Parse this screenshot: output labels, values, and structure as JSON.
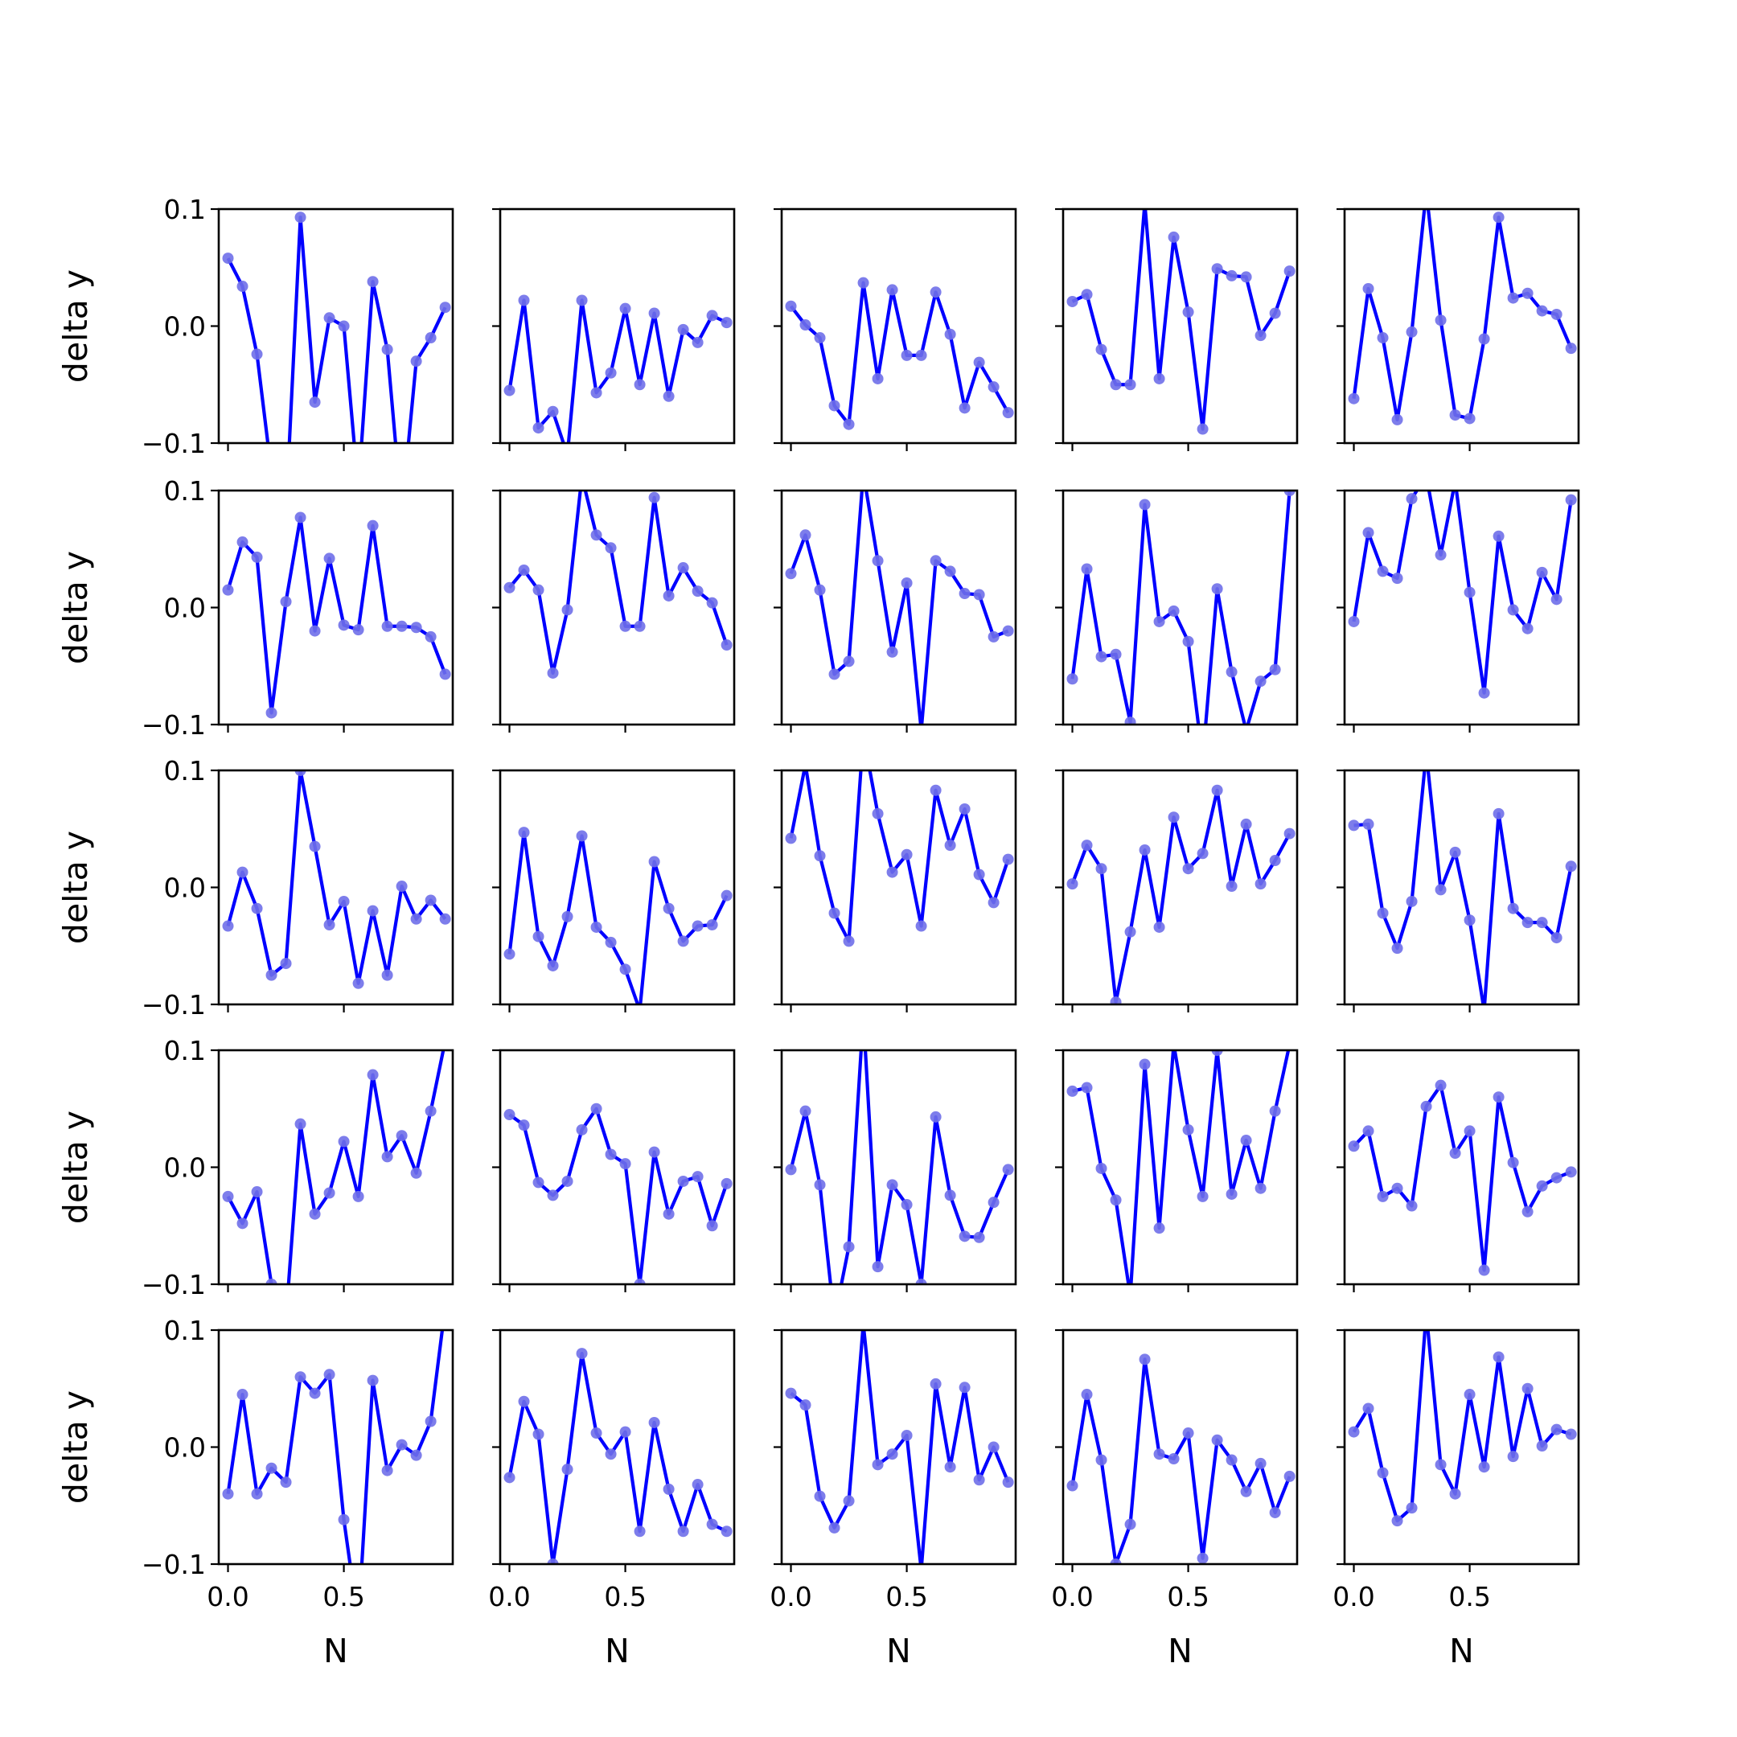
{
  "chart_data": {
    "type": "line",
    "layout": {
      "rows": 5,
      "cols": 5,
      "sharex": true,
      "sharey": true
    },
    "x": [
      0,
      0.0625,
      0.125,
      0.1875,
      0.25,
      0.3125,
      0.375,
      0.4375,
      0.5,
      0.5625,
      0.625,
      0.6875,
      0.75,
      0.8125,
      0.875,
      0.9375
    ],
    "xlim": [
      -0.04,
      0.97
    ],
    "ylim": [
      -0.1,
      0.1
    ],
    "xticks": [
      0.0,
      0.5
    ],
    "xtick_labels": [
      "0.0",
      "0.5"
    ],
    "yticks": [
      -0.1,
      0.0,
      0.1
    ],
    "ytick_labels": [
      "−0.1",
      "0.0",
      "0.1"
    ],
    "xlabel": "N",
    "ylabel": "delta y",
    "line_color": "#0000ff",
    "marker_color": "#6f6fe9",
    "grid": false,
    "subplots": [
      {
        "row": 0,
        "col": 0,
        "y": [
          0.058,
          0.034,
          -0.024,
          -0.125,
          -0.16,
          0.093,
          -0.065,
          0.007,
          0.0,
          -0.14,
          0.038,
          -0.02,
          -0.16,
          -0.03,
          -0.01,
          0.016
        ]
      },
      {
        "row": 0,
        "col": 1,
        "y": [
          -0.055,
          0.022,
          -0.087,
          -0.073,
          -0.11,
          0.022,
          -0.057,
          -0.04,
          0.015,
          -0.05,
          0.011,
          -0.06,
          -0.003,
          -0.014,
          0.009,
          0.003
        ]
      },
      {
        "row": 0,
        "col": 2,
        "y": [
          0.017,
          0.001,
          -0.01,
          -0.068,
          -0.084,
          0.037,
          -0.045,
          0.031,
          -0.025,
          -0.025,
          0.029,
          -0.007,
          -0.07,
          -0.031,
          -0.052,
          -0.074
        ]
      },
      {
        "row": 0,
        "col": 3,
        "y": [
          0.021,
          0.027,
          -0.02,
          -0.05,
          -0.05,
          0.105,
          -0.045,
          0.076,
          0.012,
          -0.088,
          0.049,
          0.043,
          0.042,
          -0.008,
          0.011,
          0.047
        ]
      },
      {
        "row": 0,
        "col": 4,
        "y": [
          -0.062,
          0.032,
          -0.01,
          -0.08,
          -0.005,
          0.115,
          0.005,
          -0.076,
          -0.079,
          -0.011,
          0.093,
          0.024,
          0.028,
          0.013,
          0.01,
          -0.019
        ]
      },
      {
        "row": 1,
        "col": 0,
        "y": [
          0.015,
          0.056,
          0.043,
          -0.09,
          0.005,
          0.077,
          -0.02,
          0.042,
          -0.015,
          -0.019,
          0.07,
          -0.016,
          -0.016,
          -0.017,
          -0.025,
          -0.057
        ]
      },
      {
        "row": 1,
        "col": 1,
        "y": [
          0.017,
          0.032,
          0.015,
          -0.056,
          -0.002,
          0.112,
          0.062,
          0.051,
          -0.016,
          -0.016,
          0.094,
          0.01,
          0.034,
          0.014,
          0.004,
          -0.032
        ]
      },
      {
        "row": 1,
        "col": 2,
        "y": [
          0.029,
          0.062,
          0.015,
          -0.057,
          -0.046,
          0.115,
          0.04,
          -0.038,
          0.021,
          -0.105,
          0.04,
          0.031,
          0.012,
          0.011,
          -0.025,
          -0.02
        ]
      },
      {
        "row": 1,
        "col": 3,
        "y": [
          -0.061,
          0.033,
          -0.042,
          -0.04,
          -0.098,
          0.088,
          -0.012,
          -0.003,
          -0.029,
          -0.13,
          0.016,
          -0.055,
          -0.105,
          -0.063,
          -0.053,
          0.1
        ]
      },
      {
        "row": 1,
        "col": 4,
        "y": [
          -0.012,
          0.064,
          0.031,
          0.025,
          0.093,
          0.113,
          0.045,
          0.108,
          0.013,
          -0.073,
          0.061,
          -0.002,
          -0.018,
          0.03,
          0.007,
          0.092
        ]
      },
      {
        "row": 2,
        "col": 0,
        "y": [
          -0.033,
          0.013,
          -0.018,
          -0.075,
          -0.065,
          0.1,
          0.035,
          -0.032,
          -0.012,
          -0.082,
          -0.02,
          -0.075,
          0.001,
          -0.027,
          -0.011,
          -0.027
        ]
      },
      {
        "row": 2,
        "col": 1,
        "y": [
          -0.057,
          0.047,
          -0.042,
          -0.067,
          -0.025,
          0.044,
          -0.034,
          -0.047,
          -0.07,
          -0.105,
          0.022,
          -0.018,
          -0.046,
          -0.033,
          -0.032,
          -0.007
        ]
      },
      {
        "row": 2,
        "col": 2,
        "y": [
          0.042,
          0.105,
          0.027,
          -0.022,
          -0.046,
          0.13,
          0.063,
          0.013,
          0.028,
          -0.033,
          0.083,
          0.036,
          0.067,
          0.011,
          -0.013,
          0.024
        ]
      },
      {
        "row": 2,
        "col": 3,
        "y": [
          0.003,
          0.036,
          0.016,
          -0.098,
          -0.038,
          0.032,
          -0.034,
          0.06,
          0.016,
          0.029,
          0.083,
          0.001,
          0.054,
          0.003,
          0.023,
          0.046
        ]
      },
      {
        "row": 2,
        "col": 4,
        "y": [
          0.053,
          0.054,
          -0.022,
          -0.052,
          -0.012,
          0.115,
          -0.002,
          0.03,
          -0.028,
          -0.105,
          0.063,
          -0.018,
          -0.03,
          -0.03,
          -0.043,
          0.018
        ]
      },
      {
        "row": 3,
        "col": 0,
        "y": [
          -0.025,
          -0.048,
          -0.021,
          -0.1,
          -0.13,
          0.037,
          -0.04,
          -0.022,
          0.022,
          -0.025,
          0.079,
          0.009,
          0.027,
          -0.005,
          0.048,
          0.108
        ]
      },
      {
        "row": 3,
        "col": 1,
        "y": [
          0.045,
          0.036,
          -0.013,
          -0.024,
          -0.012,
          0.032,
          0.05,
          0.011,
          0.003,
          -0.1,
          0.013,
          -0.04,
          -0.012,
          -0.008,
          -0.05,
          -0.014
        ]
      },
      {
        "row": 3,
        "col": 2,
        "y": [
          -0.002,
          0.048,
          -0.015,
          -0.13,
          -0.068,
          0.13,
          -0.085,
          -0.015,
          -0.032,
          -0.1,
          0.043,
          -0.024,
          -0.059,
          -0.06,
          -0.03,
          -0.002
        ]
      },
      {
        "row": 3,
        "col": 3,
        "y": [
          0.065,
          0.068,
          -0.001,
          -0.028,
          -0.11,
          0.088,
          -0.052,
          0.105,
          0.032,
          -0.025,
          0.1,
          -0.023,
          0.023,
          -0.018,
          0.048,
          0.105
        ]
      },
      {
        "row": 3,
        "col": 4,
        "y": [
          0.018,
          0.031,
          -0.025,
          -0.018,
          -0.033,
          0.052,
          0.07,
          0.012,
          0.031,
          -0.088,
          0.06,
          0.004,
          -0.038,
          -0.016,
          -0.009,
          -0.004
        ]
      },
      {
        "row": 4,
        "col": 0,
        "y": [
          -0.04,
          0.045,
          -0.04,
          -0.018,
          -0.03,
          0.06,
          0.046,
          0.062,
          -0.062,
          -0.15,
          0.057,
          -0.02,
          0.002,
          -0.007,
          0.022,
          0.12
        ]
      },
      {
        "row": 4,
        "col": 1,
        "y": [
          -0.026,
          0.039,
          0.011,
          -0.1,
          -0.019,
          0.08,
          0.012,
          -0.006,
          0.013,
          -0.072,
          0.021,
          -0.036,
          -0.072,
          -0.032,
          -0.066,
          -0.072
        ]
      },
      {
        "row": 4,
        "col": 2,
        "y": [
          0.046,
          0.036,
          -0.042,
          -0.069,
          -0.046,
          0.105,
          -0.015,
          -0.006,
          0.01,
          -0.105,
          0.054,
          -0.017,
          0.051,
          -0.028,
          0.0,
          -0.03
        ]
      },
      {
        "row": 4,
        "col": 3,
        "y": [
          -0.033,
          0.045,
          -0.011,
          -0.1,
          -0.066,
          0.075,
          -0.006,
          -0.01,
          0.012,
          -0.095,
          0.006,
          -0.011,
          -0.038,
          -0.014,
          -0.056,
          -0.025
        ]
      },
      {
        "row": 4,
        "col": 4,
        "y": [
          0.013,
          0.033,
          -0.022,
          -0.063,
          -0.052,
          0.115,
          -0.015,
          -0.04,
          0.045,
          -0.017,
          0.077,
          -0.008,
          0.05,
          0.001,
          0.015,
          0.011
        ]
      }
    ]
  }
}
